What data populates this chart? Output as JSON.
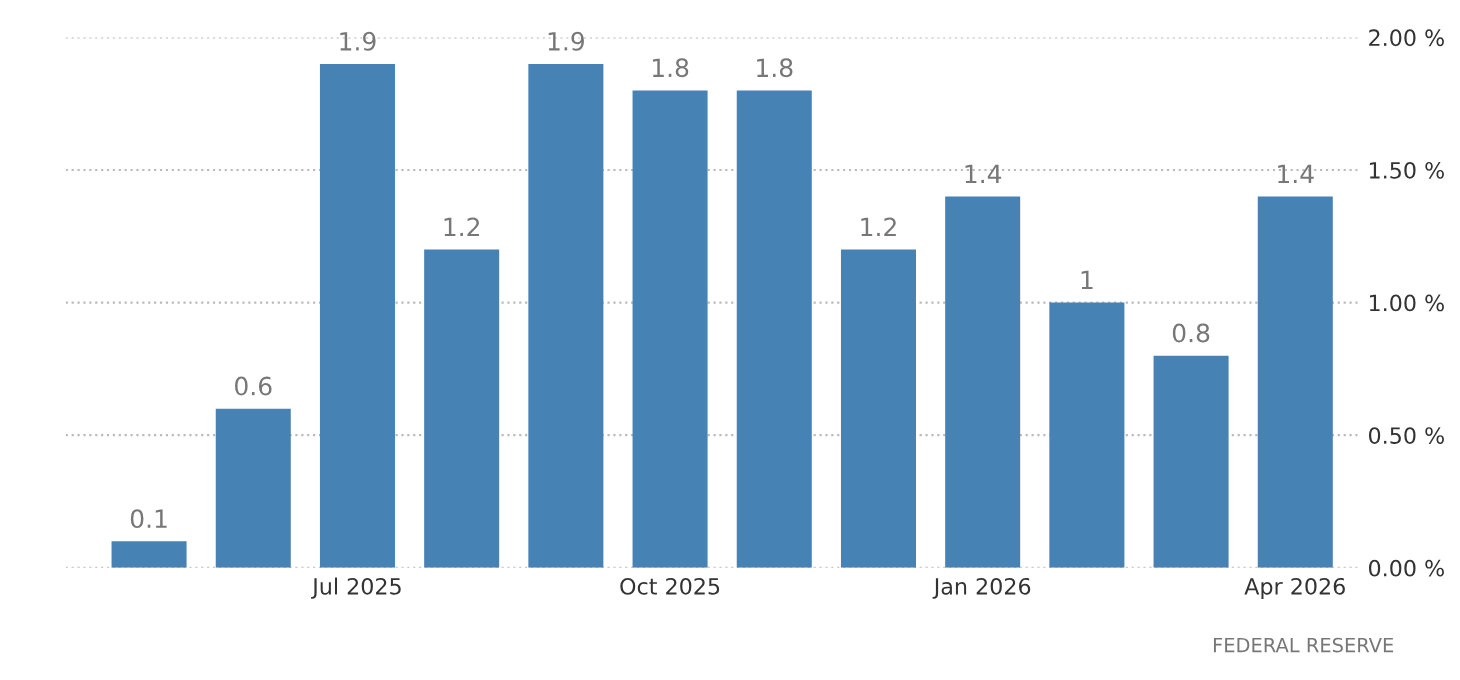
{
  "chart_data": {
    "type": "bar",
    "categories": [
      null,
      null,
      "Jul 2025",
      null,
      null,
      "Oct 2025",
      null,
      null,
      "Jan 2026",
      null,
      null,
      "Apr 2026"
    ],
    "values": [
      0.1,
      0.6,
      1.9,
      1.2,
      1.9,
      1.8,
      1.8,
      1.2,
      1.4,
      1,
      0.8,
      1.4
    ],
    "value_labels": [
      "0.1",
      "0.6",
      "1.9",
      "1.2",
      "1.9",
      "1.8",
      "1.8",
      "1.2",
      "1.4",
      "1",
      "0.8",
      "1.4"
    ],
    "color": "#4682b4",
    "ylim": [
      0,
      2
    ],
    "yticks": [
      {
        "value": 0,
        "label": "0.00 %"
      },
      {
        "value": 0.5,
        "label": "0.50 %"
      },
      {
        "value": 1,
        "label": "1.00 %"
      },
      {
        "value": 1.5,
        "label": "1.50 %"
      },
      {
        "value": 2,
        "label": "2.00 %"
      }
    ],
    "grid": "y",
    "annotations": [
      "FEDERAL RESERVE"
    ]
  }
}
